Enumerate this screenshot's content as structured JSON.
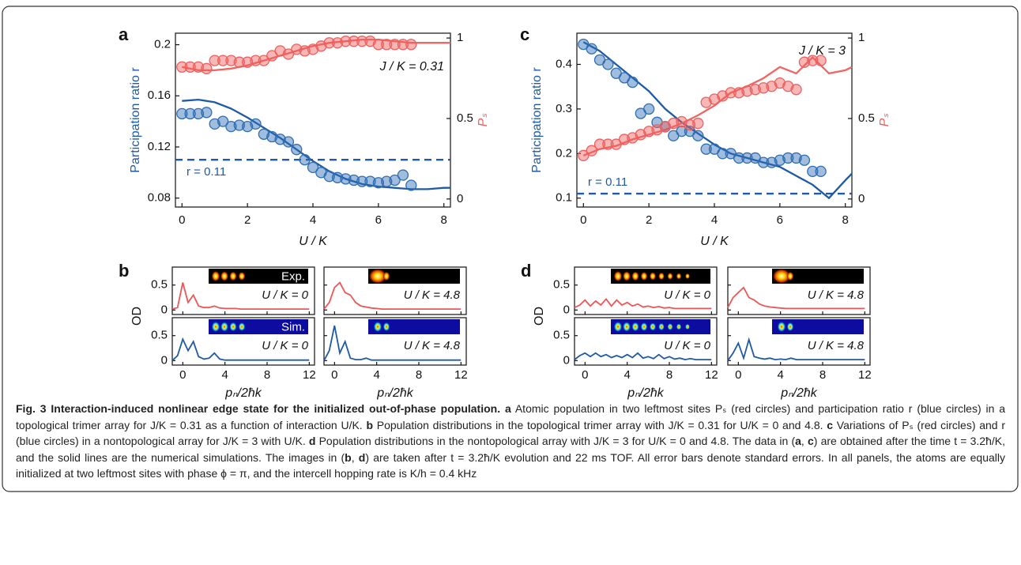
{
  "chart_data": [
    {
      "type": "dual_scatter_line",
      "panel": "a",
      "xlabel": "U / K",
      "ylabel": "Participation ratio r",
      "y2label": "Pₛ",
      "xlim": [
        -0.2,
        8.2
      ],
      "xticks": [
        0,
        2,
        4,
        6,
        8
      ],
      "ylim": [
        0.073,
        0.209
      ],
      "yticks": [
        0.08,
        0.12,
        0.16,
        0.2
      ],
      "y2lim": [
        -0.05,
        1.03
      ],
      "y2ticks": [
        0,
        0.5,
        1
      ],
      "annotation": "J / K = 0.31",
      "reference": {
        "value": 0.11,
        "label": "r = 0.11"
      },
      "series": [
        {
          "kind": "line",
          "axis": "y",
          "color": "#1f5aa6",
          "x": [
            0,
            0.5,
            1,
            1.5,
            2,
            2.5,
            3,
            3.5,
            4,
            4.5,
            5,
            5.5,
            6,
            6.5,
            7,
            7.5,
            8,
            8.2
          ],
          "values": [
            0.156,
            0.157,
            0.155,
            0.15,
            0.143,
            0.135,
            0.127,
            0.118,
            0.109,
            0.101,
            0.095,
            0.091,
            0.089,
            0.088,
            0.087,
            0.087,
            0.088,
            0.088
          ]
        },
        {
          "kind": "line",
          "axis": "y2",
          "color": "#f26462",
          "x": [
            0,
            0.5,
            1,
            1.5,
            2,
            2.5,
            3,
            3.5,
            4,
            4.5,
            5,
            5.5,
            6,
            6.5,
            7,
            7.5,
            8,
            8.2
          ],
          "values": [
            0.82,
            0.8,
            0.8,
            0.81,
            0.83,
            0.86,
            0.89,
            0.92,
            0.95,
            0.97,
            0.98,
            0.99,
            0.99,
            0.98,
            0.97,
            0.97,
            0.97,
            0.97
          ]
        },
        {
          "kind": "points",
          "axis": "y",
          "color": "#2f6db3",
          "x": [
            0,
            0.25,
            0.5,
            0.75,
            1,
            1.25,
            1.5,
            1.75,
            2,
            2.25,
            2.5,
            2.75,
            3,
            3.25,
            3.5,
            3.75,
            4,
            4.25,
            4.5,
            4.75,
            5,
            5.25,
            5.5,
            5.75,
            6,
            6.25,
            6.5,
            6.75,
            7
          ],
          "values": [
            0.146,
            0.146,
            0.146,
            0.147,
            0.138,
            0.14,
            0.136,
            0.137,
            0.136,
            0.138,
            0.13,
            0.128,
            0.126,
            0.124,
            0.118,
            0.11,
            0.104,
            0.1,
            0.097,
            0.096,
            0.095,
            0.094,
            0.093,
            0.093,
            0.092,
            0.093,
            0.094,
            0.098,
            0.09
          ]
        },
        {
          "kind": "points",
          "axis": "y2",
          "color": "#ee5f5d",
          "x": [
            0,
            0.25,
            0.5,
            0.75,
            1,
            1.25,
            1.5,
            1.75,
            2,
            2.25,
            2.5,
            2.75,
            3,
            3.25,
            3.5,
            3.75,
            4,
            4.25,
            4.5,
            4.75,
            5,
            5.25,
            5.5,
            5.75,
            6,
            6.25,
            6.5,
            6.75,
            7
          ],
          "values": [
            0.82,
            0.82,
            0.82,
            0.81,
            0.86,
            0.86,
            0.86,
            0.85,
            0.85,
            0.86,
            0.86,
            0.89,
            0.92,
            0.9,
            0.93,
            0.92,
            0.93,
            0.95,
            0.97,
            0.97,
            0.98,
            0.98,
            0.98,
            0.98,
            0.96,
            0.96,
            0.96,
            0.96,
            0.96
          ]
        }
      ]
    },
    {
      "type": "od_panels",
      "panel": "b",
      "ylabel": "OD",
      "xlabel": "pₙ/2ħk",
      "xlim": [
        -1,
        12.5
      ],
      "xticks": [
        0,
        4,
        8,
        12
      ],
      "ylim": [
        -0.09,
        0.86
      ],
      "yticks": [
        0,
        0.5
      ],
      "x": [
        -1,
        -0.5,
        0,
        0.5,
        1,
        1.5,
        2,
        2.5,
        3,
        3.5,
        4,
        4.5,
        5,
        5.5,
        6,
        6.5,
        7,
        7.5,
        8,
        8.5,
        9,
        9.5,
        10,
        10.5,
        11,
        11.5,
        12
      ],
      "subplots": [
        {
          "annotation": "U / K = 0",
          "image_label": "Exp.",
          "color": "#f05555",
          "values": [
            0.02,
            0.05,
            0.55,
            0.15,
            0.3,
            0.08,
            0.05,
            0.05,
            0.08,
            0.04,
            0.03,
            0.03,
            0.03,
            0.02,
            0.02,
            0.02,
            0.02,
            0.02,
            0.02,
            0.02,
            0.02,
            0.02,
            0.02,
            0.02,
            0.02,
            0.02,
            0.02
          ]
        },
        {
          "annotation": "U / K = 4.8",
          "color": "#f05555",
          "values": [
            0.02,
            0.15,
            0.45,
            0.55,
            0.35,
            0.3,
            0.15,
            0.08,
            0.06,
            0.04,
            0.03,
            0.02,
            0.02,
            0.02,
            0.02,
            0.02,
            0.02,
            0.02,
            0.02,
            0.02,
            0.02,
            0.02,
            0.02,
            0.02,
            0.02,
            0.02,
            0.02
          ]
        },
        {
          "annotation": "U / K = 0",
          "image_label": "Sim.",
          "color": "#1f5aa6",
          "values": [
            0,
            0.1,
            0.43,
            0.2,
            0.38,
            0.08,
            0.03,
            0.05,
            0.15,
            0.03,
            0.01,
            0.01,
            0.01,
            0.01,
            0.01,
            0.01,
            0.01,
            0.01,
            0.01,
            0.01,
            0.01,
            0.01,
            0.01,
            0.01,
            0.01,
            0.01,
            0.01
          ]
        },
        {
          "annotation": "U / K = 4.8",
          "color": "#1f5aa6",
          "values": [
            0,
            0.2,
            0.7,
            0.15,
            0.38,
            0.05,
            0.02,
            0.02,
            0.05,
            0.01,
            0.01,
            0.01,
            0.01,
            0.01,
            0.01,
            0.01,
            0.01,
            0.01,
            0.01,
            0.01,
            0.01,
            0.01,
            0.01,
            0.01,
            0.01,
            0.01,
            0.01
          ]
        }
      ]
    },
    {
      "type": "dual_scatter_line",
      "panel": "c",
      "xlabel": "U / K",
      "ylabel": "Participation ratio r",
      "y2label": "Pₛ",
      "xlim": [
        -0.2,
        8.2
      ],
      "xticks": [
        0,
        2,
        4,
        6,
        8
      ],
      "ylim": [
        0.08,
        0.47
      ],
      "yticks": [
        0.1,
        0.2,
        0.3,
        0.4
      ],
      "y2lim": [
        -0.05,
        1.03
      ],
      "y2ticks": [
        0,
        0.5,
        1
      ],
      "annotation": "J / K = 3",
      "reference": {
        "value": 0.11,
        "label": "r = 0.11"
      },
      "series": [
        {
          "kind": "line",
          "axis": "y",
          "color": "#1f5aa6",
          "x": [
            0,
            0.5,
            1,
            1.5,
            2,
            2.5,
            3,
            3.5,
            4,
            4.5,
            5,
            5.5,
            6,
            6.5,
            7,
            7.5,
            8,
            8.2
          ],
          "values": [
            0.45,
            0.43,
            0.4,
            0.37,
            0.34,
            0.3,
            0.27,
            0.245,
            0.22,
            0.2,
            0.19,
            0.18,
            0.17,
            0.15,
            0.13,
            0.1,
            0.14,
            0.155
          ]
        },
        {
          "kind": "line",
          "axis": "y2",
          "color": "#f26462",
          "x": [
            0,
            0.5,
            1,
            1.5,
            2,
            2.5,
            3,
            3.5,
            4,
            4.5,
            5,
            5.5,
            6,
            6.5,
            7,
            7.5,
            8,
            8.2
          ],
          "values": [
            0.27,
            0.31,
            0.33,
            0.37,
            0.4,
            0.43,
            0.47,
            0.52,
            0.58,
            0.66,
            0.7,
            0.75,
            0.82,
            0.78,
            0.88,
            0.78,
            0.8,
            0.82
          ]
        },
        {
          "kind": "points",
          "axis": "y",
          "color": "#2f6db3",
          "x": [
            0,
            0.25,
            0.5,
            0.75,
            1,
            1.25,
            1.5,
            1.75,
            2,
            2.25,
            2.5,
            2.75,
            3,
            3.25,
            3.5,
            3.75,
            4,
            4.25,
            4.5,
            4.75,
            5,
            5.25,
            5.5,
            5.75,
            6,
            6.25,
            6.5,
            6.75,
            7,
            7.25
          ],
          "values": [
            0.445,
            0.435,
            0.41,
            0.4,
            0.38,
            0.37,
            0.36,
            0.29,
            0.3,
            0.27,
            0.26,
            0.24,
            0.25,
            0.25,
            0.24,
            0.21,
            0.21,
            0.2,
            0.2,
            0.19,
            0.19,
            0.19,
            0.18,
            0.18,
            0.185,
            0.19,
            0.19,
            0.185,
            0.16,
            0.16
          ]
        },
        {
          "kind": "points",
          "axis": "y2",
          "color": "#ee5f5d",
          "x": [
            0,
            0.25,
            0.5,
            0.75,
            1,
            1.25,
            1.5,
            1.75,
            2,
            2.25,
            2.5,
            2.75,
            3,
            3.25,
            3.5,
            3.75,
            4,
            4.25,
            4.5,
            4.75,
            5,
            5.25,
            5.5,
            5.75,
            6,
            6.25,
            6.5,
            6.75,
            7,
            7.25
          ],
          "values": [
            0.27,
            0.3,
            0.34,
            0.34,
            0.34,
            0.37,
            0.38,
            0.4,
            0.42,
            0.43,
            0.45,
            0.47,
            0.48,
            0.46,
            0.47,
            0.6,
            0.62,
            0.64,
            0.66,
            0.66,
            0.67,
            0.68,
            0.69,
            0.7,
            0.72,
            0.7,
            0.68,
            0.85,
            0.86,
            0.86
          ]
        }
      ]
    },
    {
      "type": "od_panels",
      "panel": "d",
      "ylabel": "OD",
      "xlabel": "pₙ/2ħk",
      "xlim": [
        -1,
        12.5
      ],
      "xticks": [
        0,
        4,
        8,
        12
      ],
      "ylim": [
        -0.09,
        0.86
      ],
      "yticks": [
        0,
        0.5
      ],
      "x": [
        -1,
        -0.5,
        0,
        0.5,
        1,
        1.5,
        2,
        2.5,
        3,
        3.5,
        4,
        4.5,
        5,
        5.5,
        6,
        6.5,
        7,
        7.5,
        8,
        8.5,
        9,
        9.5,
        10,
        10.5,
        11,
        11.5,
        12
      ],
      "subplots": [
        {
          "annotation": "U / K = 0",
          "color": "#f05555",
          "values": [
            0.05,
            0.1,
            0.2,
            0.08,
            0.18,
            0.1,
            0.22,
            0.08,
            0.2,
            0.1,
            0.15,
            0.08,
            0.12,
            0.06,
            0.08,
            0.05,
            0.07,
            0.04,
            0.05,
            0.03,
            0.03,
            0.03,
            0.03,
            0.03,
            0.03,
            0.03,
            0.03
          ]
        },
        {
          "annotation": "U / K = 4.8",
          "color": "#f05555",
          "values": [
            0.05,
            0.25,
            0.35,
            0.45,
            0.25,
            0.2,
            0.12,
            0.08,
            0.06,
            0.05,
            0.04,
            0.03,
            0.03,
            0.03,
            0.03,
            0.03,
            0.03,
            0.03,
            0.03,
            0.03,
            0.03,
            0.03,
            0.03,
            0.03,
            0.03,
            0.03,
            0.03
          ]
        },
        {
          "annotation": "U / K = 0",
          "color": "#1f5aa6",
          "values": [
            0.02,
            0.1,
            0.15,
            0.08,
            0.15,
            0.08,
            0.12,
            0.06,
            0.1,
            0.06,
            0.12,
            0.06,
            0.15,
            0.05,
            0.08,
            0.04,
            0.12,
            0.04,
            0.08,
            0.03,
            0.05,
            0.02,
            0.04,
            0.02,
            0.02,
            0.02,
            0.02
          ]
        },
        {
          "annotation": "U / K = 4.8",
          "color": "#1f5aa6",
          "values": [
            0,
            0.15,
            0.35,
            0.05,
            0.42,
            0.08,
            0.05,
            0.03,
            0.05,
            0.02,
            0.03,
            0.02,
            0.05,
            0.02,
            0.02,
            0.02,
            0.02,
            0.02,
            0.02,
            0.02,
            0.02,
            0.02,
            0.02,
            0.02,
            0.02,
            0.02,
            0.02
          ]
        }
      ]
    }
  ],
  "caption": {
    "label": "Fig. 3",
    "title": "Interaction-induced nonlinear edge state for the initialized out-of-phase population.",
    "body": [
      {
        "text": "a",
        "style": "bold"
      },
      {
        "text": " Atomic population in two leftmost sites Pₛ (red circles) and participation ratio r (blue circles) in a topological trimer array for J/K = 0.31 as a function of interaction U/K. "
      },
      {
        "text": "b",
        "style": "bold"
      },
      {
        "text": " Population distributions in the topological trimer array with J/K = 0.31 for U/K = 0 and 4.8. "
      },
      {
        "text": "c",
        "style": "bold"
      },
      {
        "text": " Variations of Pₛ (red circles) and r (blue circles) in a nontopological array for J/K = 3 with U/K. "
      },
      {
        "text": "d",
        "style": "bold"
      },
      {
        "text": " Population distributions in the nontopological array with J/K = 3 for U/K = 0 and 4.8. The data in ("
      },
      {
        "text": "a",
        "style": "bold"
      },
      {
        "text": ", "
      },
      {
        "text": "c",
        "style": "bold"
      },
      {
        "text": ") are obtained after the time t = 3.2ħ/K, and the solid lines are the numerical simulations. The images in ("
      },
      {
        "text": "b",
        "style": "bold"
      },
      {
        "text": ", "
      },
      {
        "text": "d",
        "style": "bold"
      },
      {
        "text": ") are taken after t = 3.2ħ/K evolution and 22 ms TOF. All error bars denote standard errors. In all panels, the atoms are equally initialized at two leftmost sites with phase ϕ = π, and the intercell hopping rate is K/h = 0.4 kHz"
      }
    ]
  }
}
